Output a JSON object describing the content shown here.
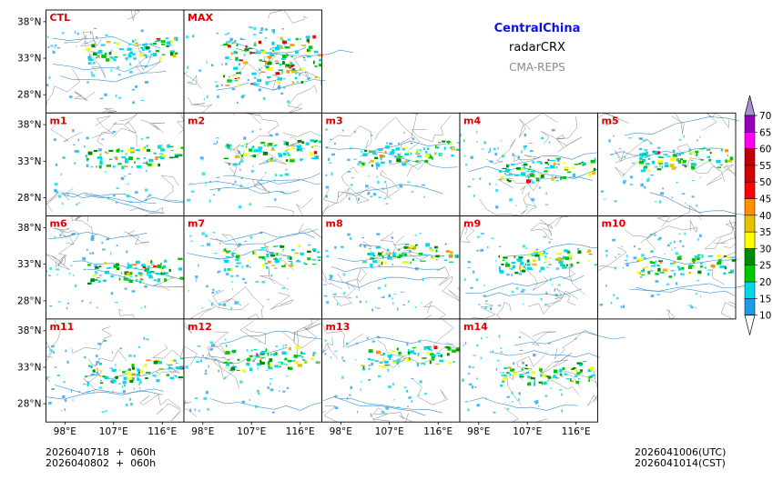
{
  "header": {
    "region": "CentralChina",
    "product": "radarCRX",
    "system": "CMA-REPS"
  },
  "footer": {
    "init_line1": "2026040718  +  060h",
    "init_line2": "2026040802  +  060h",
    "valid_utc": "2026041006(UTC)",
    "valid_cst": "2026041014(CST)"
  },
  "chart_data": {
    "type": "heatmap",
    "panels": [
      "CTL",
      "MAX",
      "m1",
      "m2",
      "m3",
      "m4",
      "m5",
      "m6",
      "m7",
      "m8",
      "m9",
      "m10",
      "m11",
      "m12",
      "m13",
      "m14"
    ],
    "yticklabels": [
      "38°N",
      "33°N",
      "28°N"
    ],
    "ytick_values": [
      38,
      33,
      28
    ],
    "xticklabels": [
      "98°E",
      "107°E",
      "116°E"
    ],
    "xtick_values": [
      98,
      107,
      116
    ],
    "xlim": [
      94.5,
      120
    ],
    "ylim": [
      25.5,
      39.6
    ],
    "colorbar": {
      "levels": [
        "10",
        "15",
        "20",
        "25",
        "30",
        "35",
        "40",
        "45",
        "50",
        "55",
        "60",
        "65",
        "70"
      ],
      "colors": [
        "#1e9be8",
        "#00d8e8",
        "#00c800",
        "#008a00",
        "#ffff00",
        "#e7c000",
        "#ff9000",
        "#ff0000",
        "#d60000",
        "#c00000",
        "#ff00f0",
        "#9600b4",
        "#a890d8"
      ],
      "extend": "both"
    },
    "xlabel": "",
    "ylabel": ""
  }
}
